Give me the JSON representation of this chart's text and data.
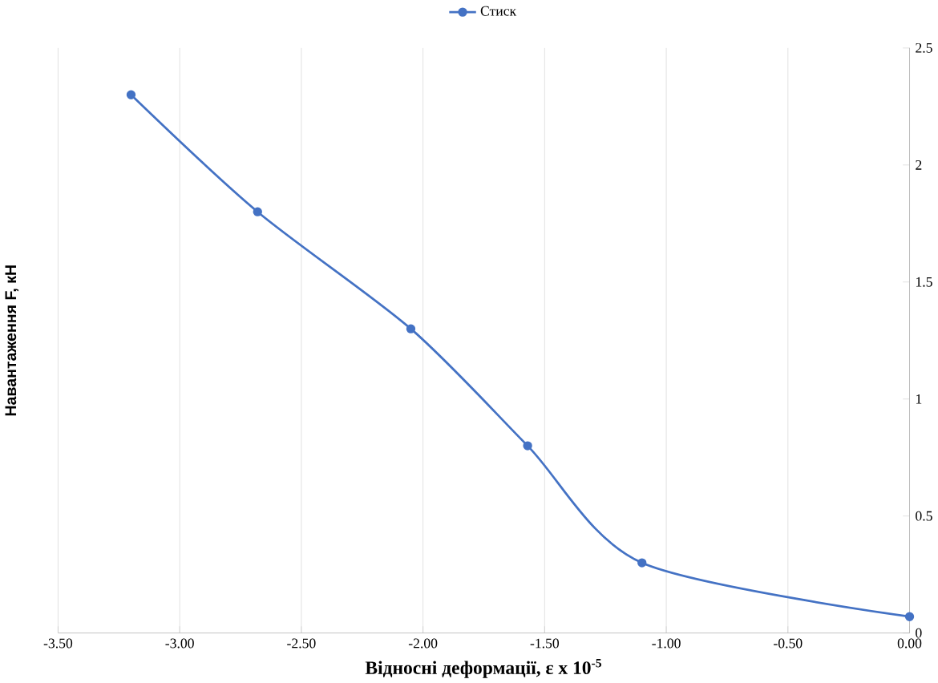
{
  "chart_data": {
    "type": "line",
    "xlabel": "Відносні деформації, ε x 10$^{-5}$",
    "ylabel": "Навантаження F, кН",
    "x": [
      -3.2,
      -2.68,
      -2.05,
      -1.57,
      -1.1,
      0
    ],
    "series": [
      {
        "name": "Стиск",
        "color": "#4472c4",
        "values": [
          2.3,
          1.8,
          1.3,
          0.8,
          0.3,
          0.07
        ]
      }
    ],
    "xlim": [
      -3.5,
      0
    ],
    "xticks": [
      {
        "value": -3.5,
        "label": "-3.50"
      },
      {
        "value": -3,
        "label": "-3.00"
      },
      {
        "value": -2.5,
        "label": "-2.50"
      },
      {
        "value": -2,
        "label": "-2.00"
      },
      {
        "value": -1.5,
        "label": "-1.50"
      },
      {
        "value": -1,
        "label": "-1.00"
      },
      {
        "value": -0.5,
        "label": "-0.50"
      },
      {
        "value": 0,
        "label": "0.00"
      }
    ],
    "ylim": [
      0,
      2.5
    ],
    "yticks": [
      0,
      0.5,
      1,
      1.5,
      2,
      2.5
    ],
    "grid": "x",
    "legend": "top",
    "marker": "circle",
    "line_style": "solid"
  }
}
